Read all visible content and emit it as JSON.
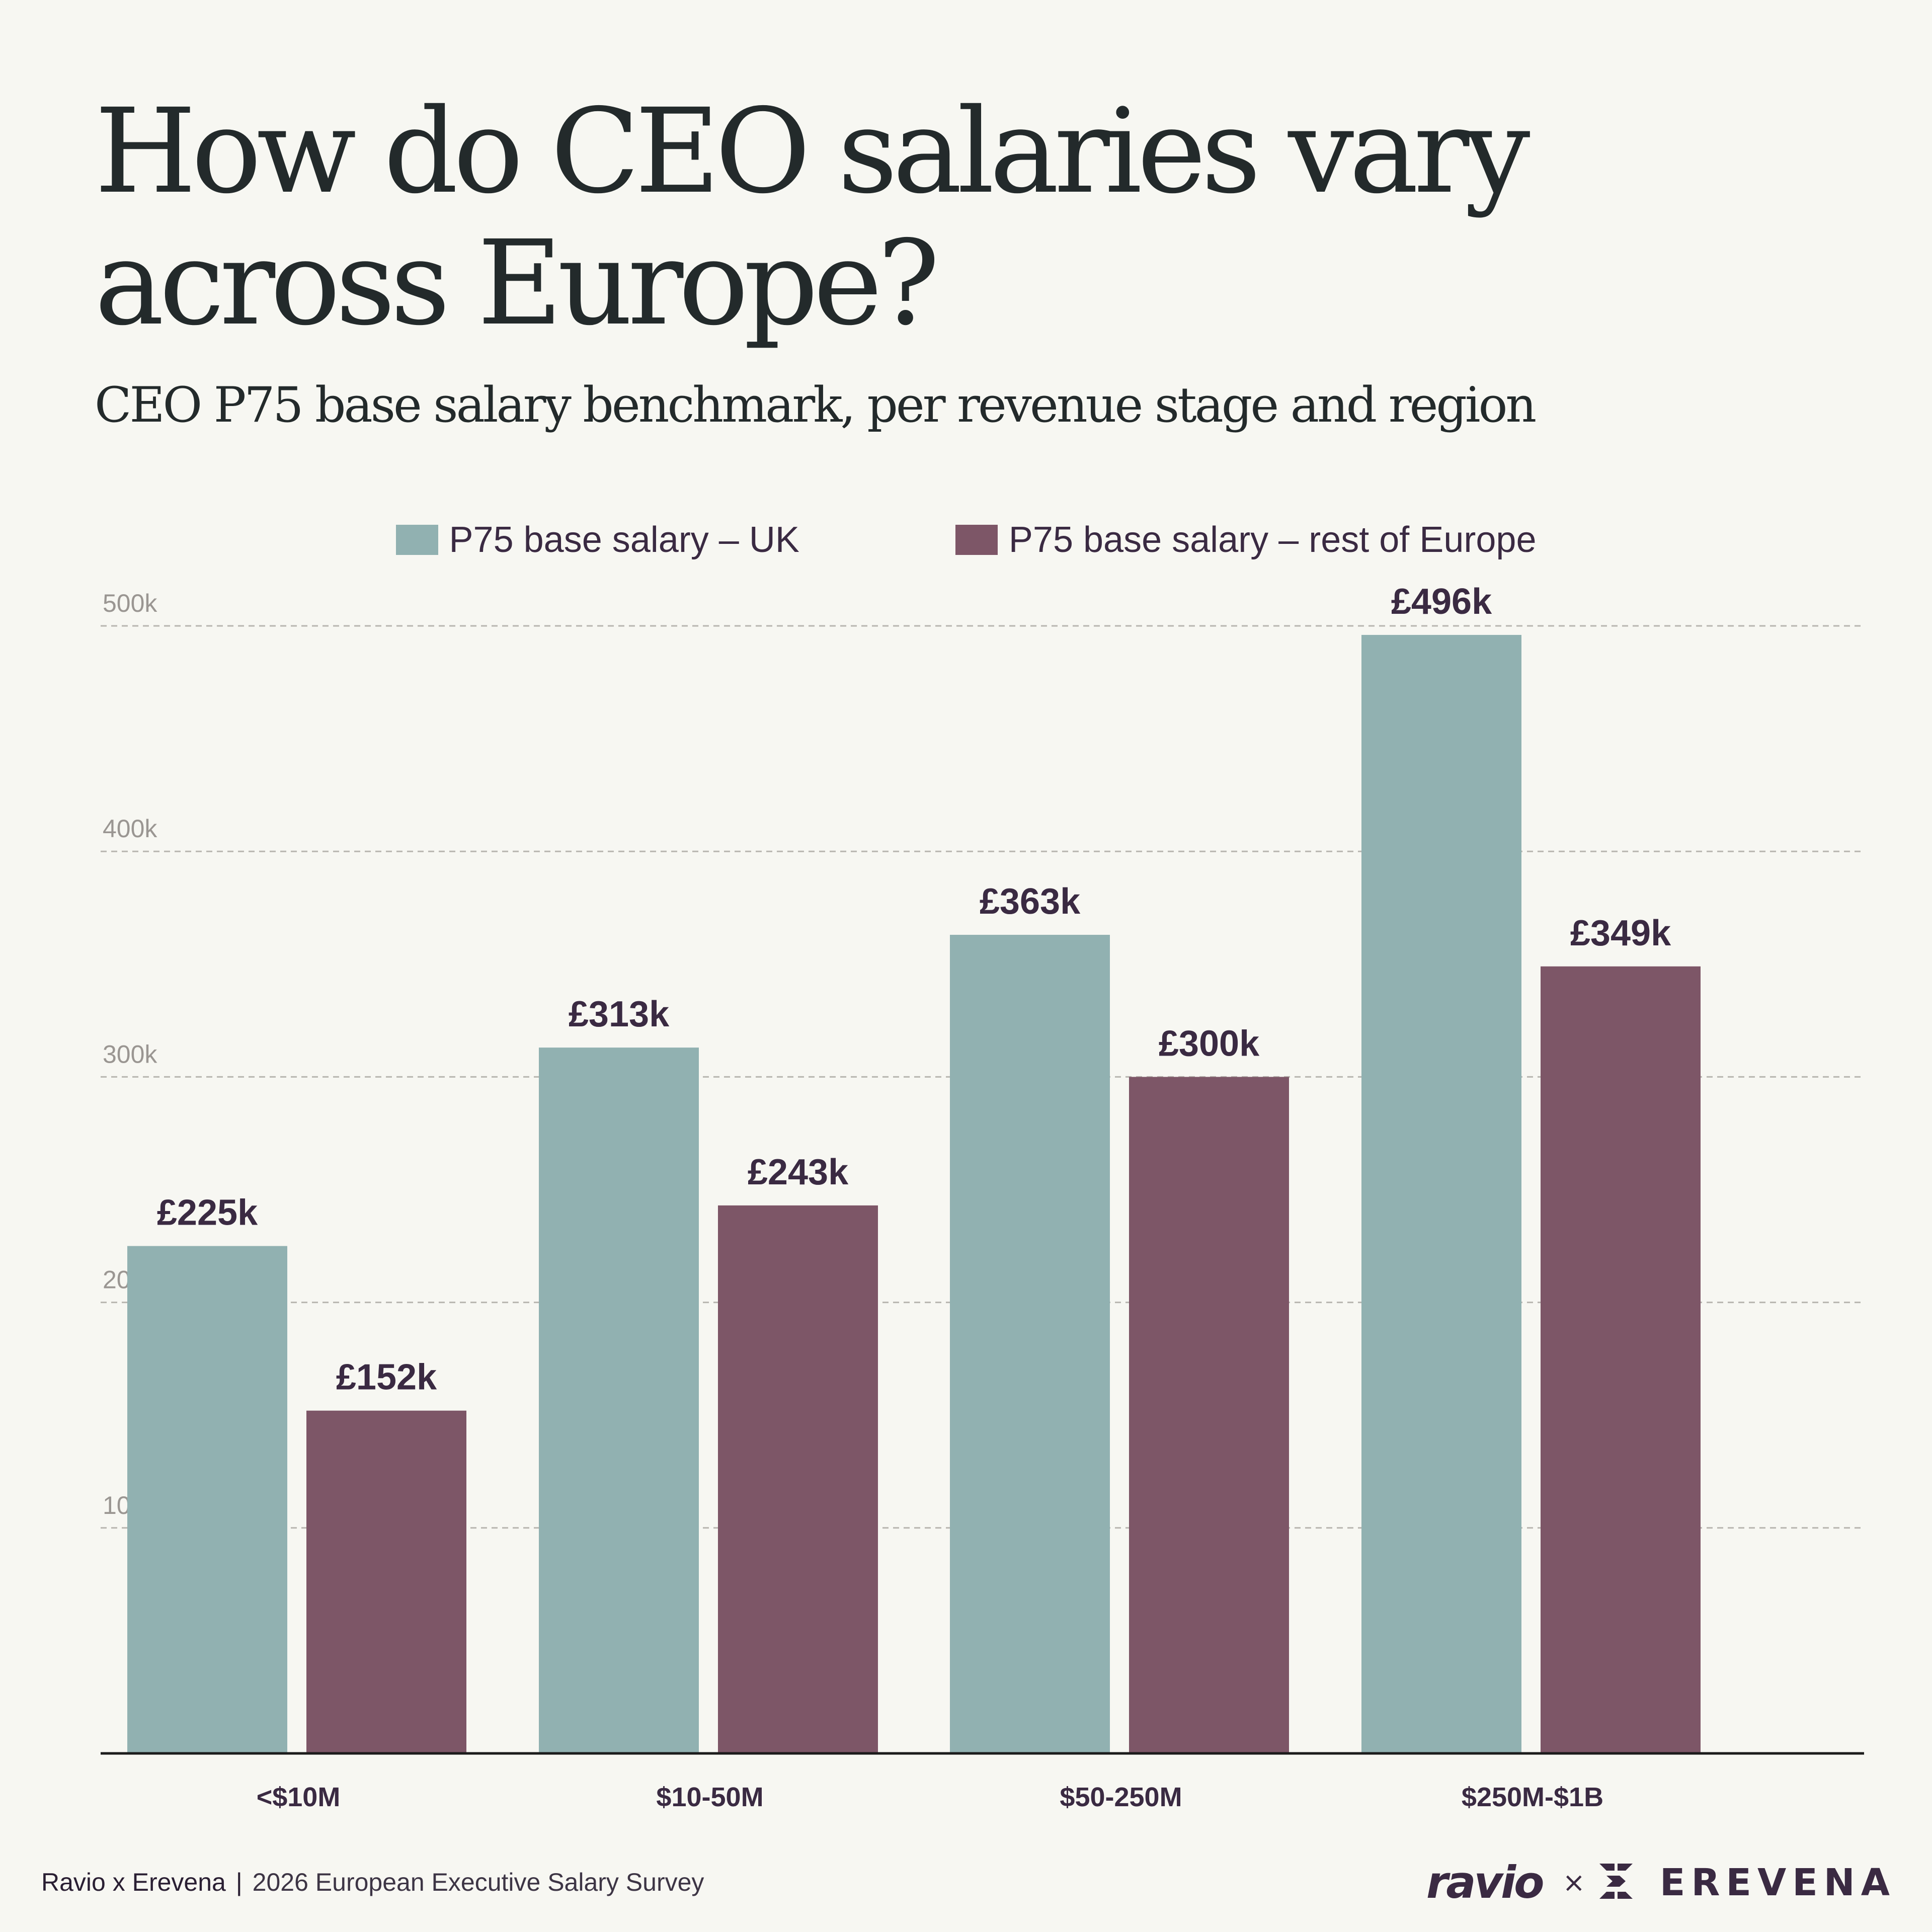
{
  "header": {
    "title": "How do CEO salaries vary across Europe?",
    "subtitle": "CEO P75 base salary benchmark, per revenue stage and region"
  },
  "colors": {
    "background": "#f7f7f2",
    "uk": "#91b1b1",
    "rest_of_europe": "#7d5667",
    "label_text": "#3a2a42",
    "gridline": "#b8b6b0",
    "tick_text": "#9a9692"
  },
  "chart_data": {
    "type": "bar",
    "categories": [
      "<$10M",
      "$10-50M",
      "$50-250M",
      "$250M-$1B"
    ],
    "series": [
      {
        "name": "P75 base salary – UK",
        "values": [
          225,
          313,
          363,
          496
        ],
        "labels": [
          "£225k",
          "£313k",
          "£363k",
          "£496k"
        ],
        "color": "#91b1b1"
      },
      {
        "name": "P75 base salary – rest of Europe",
        "values": [
          152,
          243,
          300,
          349
        ],
        "labels": [
          "£152k",
          "£243k",
          "£300k",
          "£349k"
        ],
        "color": "#7d5667"
      }
    ],
    "yticks": [
      100,
      200,
      300,
      400,
      500
    ],
    "ytick_labels": [
      "100k",
      "200k",
      "300k",
      "400k",
      "500k"
    ],
    "ylim": [
      0,
      500
    ],
    "grid": true,
    "legend": "top-center"
  },
  "footer": {
    "source": "Ravio x Erevena",
    "separator": "|",
    "survey": "2026 European Executive Salary Survey",
    "brand_ravio": "ravio",
    "brand_x": "×",
    "brand_erevena": "EREVENA"
  }
}
